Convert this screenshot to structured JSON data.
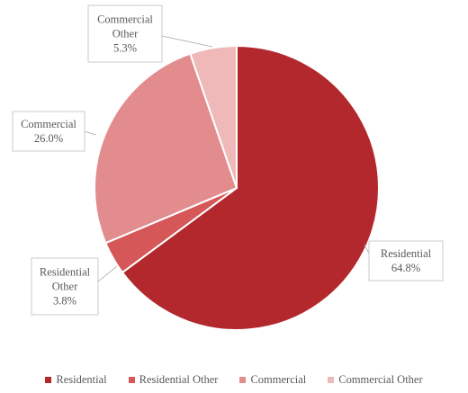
{
  "chart_data": {
    "type": "pie",
    "title": "",
    "categories": [
      "Residential",
      "Residential Other",
      "Commercial",
      "Commercial Other"
    ],
    "values": [
      64.8,
      3.8,
      26.0,
      5.3
    ],
    "data_labels": [
      "64.8%",
      "3.8%",
      "26.0%",
      "5.3%"
    ],
    "colors": [
      "#b3282d",
      "#d55757",
      "#e28c8e",
      "#efb9b9"
    ],
    "label_lines": [
      [
        "Residential",
        "64.8%"
      ],
      [
        "Residential",
        "Other",
        "3.8%"
      ],
      [
        "Commercial",
        "26.0%"
      ],
      [
        "Commercial",
        "Other",
        "5.3%"
      ]
    ],
    "legend": {
      "position": "bottom",
      "entries": [
        "Residential",
        "Residential Other",
        "Commercial",
        "Commercial Other"
      ]
    },
    "start_angle_deg": 0,
    "direction": "clockwise"
  }
}
